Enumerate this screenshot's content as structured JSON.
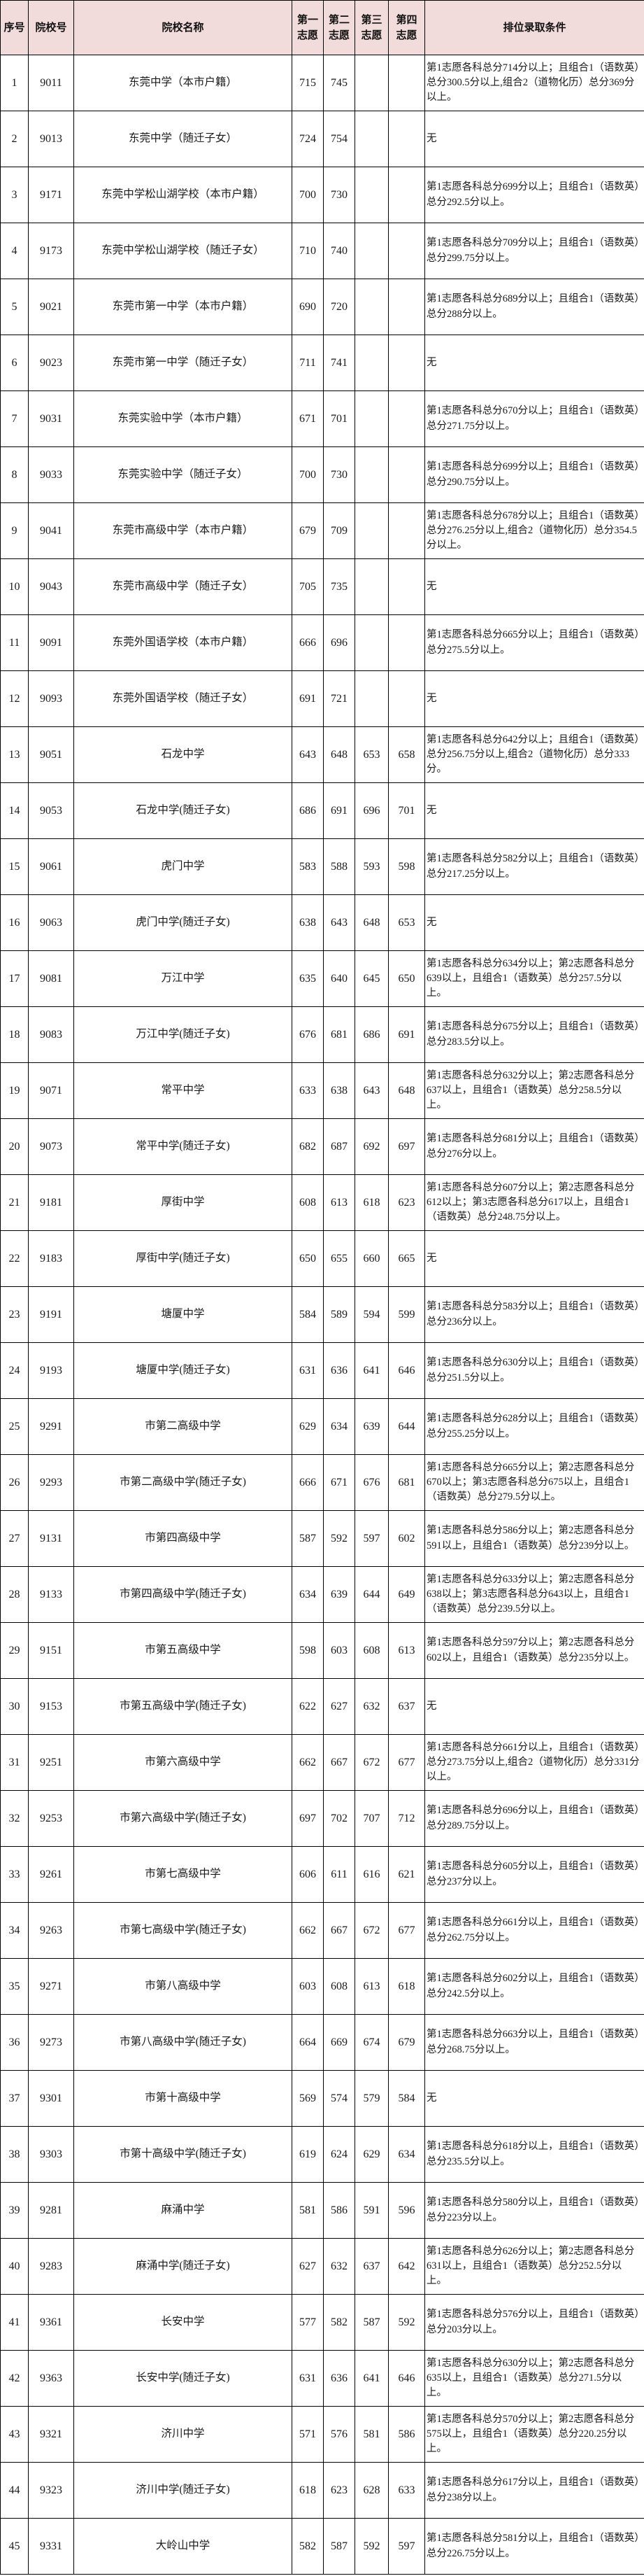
{
  "table": {
    "columns": [
      "序号",
      "院校号",
      "院校名称",
      "第一志愿",
      "第二志愿",
      "第三志愿",
      "第四志愿",
      "排位录取条件"
    ],
    "rows": [
      [
        "1",
        "9011",
        "东莞中学（本市户籍）",
        "715",
        "745",
        "",
        "",
        "第1志愿各科总分714分以上；且组合1（语数英）总分300.5分以上,组合2（道物化历）总分369分以上。"
      ],
      [
        "2",
        "9013",
        "东莞中学（随迁子女）",
        "724",
        "754",
        "",
        "",
        "无"
      ],
      [
        "3",
        "9171",
        "东莞中学松山湖学校（本市户籍）",
        "700",
        "730",
        "",
        "",
        "第1志愿各科总分699分以上；且组合1（语数英）总分292.5分以上。"
      ],
      [
        "4",
        "9173",
        "东莞中学松山湖学校（随迁子女）",
        "710",
        "740",
        "",
        "",
        "第1志愿各科总分709分以上；且组合1（语数英）总分299.75分以上。"
      ],
      [
        "5",
        "9021",
        "东莞市第一中学（本市户籍）",
        "690",
        "720",
        "",
        "",
        "第1志愿各科总分689分以上；且组合1（语数英）总分288分以上。"
      ],
      [
        "6",
        "9023",
        "东莞市第一中学（随迁子女）",
        "711",
        "741",
        "",
        "",
        "无"
      ],
      [
        "7",
        "9031",
        "东莞实验中学（本市户籍）",
        "671",
        "701",
        "",
        "",
        "第1志愿各科总分670分以上；且组合1（语数英）总分271.75分以上。"
      ],
      [
        "8",
        "9033",
        "东莞实验中学（随迁子女）",
        "700",
        "730",
        "",
        "",
        "第1志愿各科总分699分以上；且组合1（语数英）总分290.75分以上。"
      ],
      [
        "9",
        "9041",
        "东莞市高级中学（本市户籍）",
        "679",
        "709",
        "",
        "",
        "第1志愿各科总分678分以上；且组合1（语数英）总分276.25分以上,组合2（道物化历）总分354.5分以上。"
      ],
      [
        "10",
        "9043",
        "东莞市高级中学（随迁子女）",
        "705",
        "735",
        "",
        "",
        "无"
      ],
      [
        "11",
        "9091",
        "东莞外国语学校（本市户籍）",
        "666",
        "696",
        "",
        "",
        "第1志愿各科总分665分以上；且组合1（语数英）总分275.5分以上。"
      ],
      [
        "12",
        "9093",
        "东莞外国语学校（随迁子女）",
        "691",
        "721",
        "",
        "",
        "无"
      ],
      [
        "13",
        "9051",
        "石龙中学",
        "643",
        "648",
        "653",
        "658",
        "第1志愿各科总分642分以上；且组合1（语数英）总分256.75分以上,组合2（道物化历）总分333分。"
      ],
      [
        "14",
        "9053",
        "石龙中学(随迁子女)",
        "686",
        "691",
        "696",
        "701",
        "无"
      ],
      [
        "15",
        "9061",
        "虎门中学",
        "583",
        "588",
        "593",
        "598",
        "第1志愿各科总分582分以上；且组合1（语数英）总分217.25分以上。"
      ],
      [
        "16",
        "9063",
        "虎门中学(随迁子女)",
        "638",
        "643",
        "648",
        "653",
        "无"
      ],
      [
        "17",
        "9081",
        "万江中学",
        "635",
        "640",
        "645",
        "650",
        "第1志愿各科总分634分以上；第2志愿各科总分639以上，且组合1（语数英）总分257.5分以上。"
      ],
      [
        "18",
        "9083",
        "万江中学(随迁子女)",
        "676",
        "681",
        "686",
        "691",
        "第1志愿各科总分675分以上；且组合1（语数英）总分283.5分以上。"
      ],
      [
        "19",
        "9071",
        "常平中学",
        "633",
        "638",
        "643",
        "648",
        "第1志愿各科总分632分以上；第2志愿各科总分637以上，且组合1（语数英）总分258.5分以上。"
      ],
      [
        "20",
        "9073",
        "常平中学(随迁子女)",
        "682",
        "687",
        "692",
        "697",
        "第1志愿各科总分681分以上；且组合1（语数英）总分276分以上。"
      ],
      [
        "21",
        "9181",
        "厚街中学",
        "608",
        "613",
        "618",
        "623",
        "第1志愿各科总分607分以上；第2志愿各科总分612以上；第3志愿各科总分617以上，且组合1（语数英）总分248.75分以上。"
      ],
      [
        "22",
        "9183",
        "厚街中学(随迁子女)",
        "650",
        "655",
        "660",
        "665",
        "无"
      ],
      [
        "23",
        "9191",
        "塘厦中学",
        "584",
        "589",
        "594",
        "599",
        "第1志愿各科总分583分以上；且组合1（语数英）总分236分以上。"
      ],
      [
        "24",
        "9193",
        "塘厦中学(随迁子女)",
        "631",
        "636",
        "641",
        "646",
        "第1志愿各科总分630分以上；且组合1（语数英）总分251.5分以上。"
      ],
      [
        "25",
        "9291",
        "市第二高级中学",
        "629",
        "634",
        "639",
        "644",
        "第1志愿各科总分628分以上；且组合1（语数英）总分255.25分以上。"
      ],
      [
        "26",
        "9293",
        "市第二高级中学(随迁子女)",
        "666",
        "671",
        "676",
        "681",
        "第1志愿各科总分665分以上；第2志愿各科总分670以上；第3志愿各科总分675以上，且组合1（语数英）总分279.5分以上。"
      ],
      [
        "27",
        "9131",
        "市第四高级中学",
        "587",
        "592",
        "597",
        "602",
        "第1志愿各科总分586分以上；第2志愿各科总分591以上，且组合1（语数英）总分239分以上。"
      ],
      [
        "28",
        "9133",
        "市第四高级中学(随迁子女)",
        "634",
        "639",
        "644",
        "649",
        "第1志愿各科总分633分以上；第2志愿各科总分638以上；第3志愿各科总分643以上，且组合1（语数英）总分239.5分以上。"
      ],
      [
        "29",
        "9151",
        "市第五高级中学",
        "598",
        "603",
        "608",
        "613",
        "第1志愿各科总分597分以上；第2志愿各科总分602以上，且组合1（语数英）总分235分以上。"
      ],
      [
        "30",
        "9153",
        "市第五高级中学(随迁子女)",
        "622",
        "627",
        "632",
        "637",
        "无"
      ],
      [
        "31",
        "9251",
        "市第六高级中学",
        "662",
        "667",
        "672",
        "677",
        "第1志愿各科总分661分以上，且组合1（语数英）总分273.75分以上,组合2（道物化历）总分331分以上。"
      ],
      [
        "32",
        "9253",
        "市第六高级中学(随迁子女)",
        "697",
        "702",
        "707",
        "712",
        "第1志愿各科总分696分以上，且组合1（语数英）总分289.75分以上。"
      ],
      [
        "33",
        "9261",
        "市第七高级中学",
        "606",
        "611",
        "616",
        "621",
        "第1志愿各科总分605分以上，且组合1（语数英）总分237分以上。"
      ],
      [
        "34",
        "9263",
        "市第七高级中学(随迁子女)",
        "662",
        "667",
        "672",
        "677",
        "第1志愿各科总分661分以上，且组合1（语数英）总分262.75分以上。"
      ],
      [
        "35",
        "9271",
        "市第八高级中学",
        "603",
        "608",
        "613",
        "618",
        "第1志愿各科总分602分以上，且组合1（语数英）总分242.5分以上。"
      ],
      [
        "36",
        "9273",
        "市第八高级中学(随迁子女)",
        "664",
        "669",
        "674",
        "679",
        "第1志愿各科总分663分以上，且组合1（语数英）总分268.75分以上。"
      ],
      [
        "37",
        "9301",
        "市第十高级中学",
        "569",
        "574",
        "579",
        "584",
        "无"
      ],
      [
        "38",
        "9303",
        "市第十高级中学(随迁子女)",
        "619",
        "624",
        "629",
        "634",
        "第1志愿各科总分618分以上，且组合1（语数英）总分235.5分以上。"
      ],
      [
        "39",
        "9281",
        "麻涌中学",
        "581",
        "586",
        "591",
        "596",
        "第1志愿各科总分580分以上，且组合1（语数英）总分223分以上。"
      ],
      [
        "40",
        "9283",
        "麻涌中学(随迁子女)",
        "627",
        "632",
        "637",
        "642",
        "第1志愿各科总分626分以上；第2志愿各科总分631以上，且组合1（语数英）总分252.5分以上。"
      ],
      [
        "41",
        "9361",
        "长安中学",
        "577",
        "582",
        "587",
        "592",
        "第1志愿各科总分576分以上，且组合1（语数英）总分203分以上。"
      ],
      [
        "42",
        "9363",
        "长安中学(随迁子女)",
        "631",
        "636",
        "641",
        "646",
        "第1志愿各科总分630分以上；第2志愿各科总分635以上，且组合1（语数英）总分271.5分以上。"
      ],
      [
        "43",
        "9321",
        "济川中学",
        "571",
        "576",
        "581",
        "586",
        "第1志愿各科总分570分以上；第2志愿各科总分575以上，且组合1（语数英）总分220.25分以上。"
      ],
      [
        "44",
        "9323",
        "济川中学(随迁子女)",
        "618",
        "623",
        "628",
        "633",
        "第1志愿各科总分617分以上，且组合1（语数英）总分238分以上。"
      ],
      [
        "45",
        "9331",
        "大岭山中学",
        "582",
        "587",
        "592",
        "597",
        "第1志愿各科总分581分以上，且组合1（语数英）总分226.75分以上。"
      ]
    ]
  },
  "colors": {
    "header_bg": "#f2dcdb",
    "border": "#000000"
  }
}
